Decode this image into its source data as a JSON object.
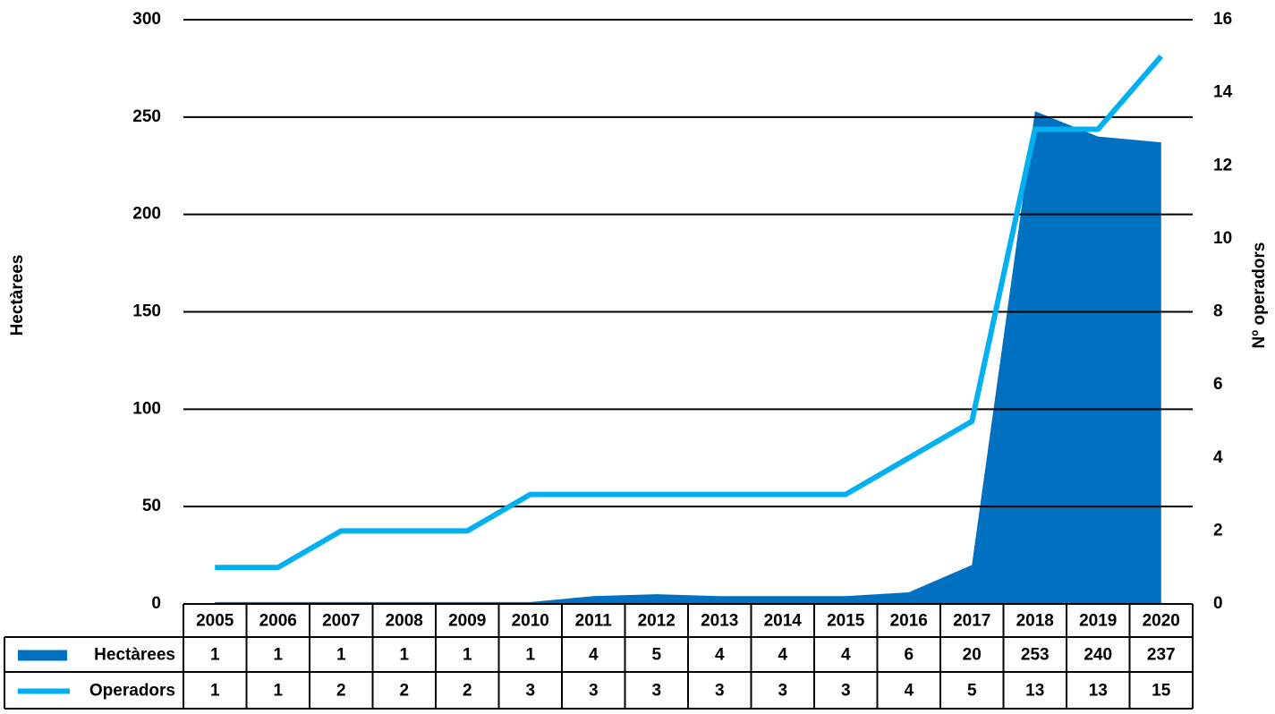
{
  "chart_data": {
    "type": "area-line",
    "y_label": "Hectàrees",
    "y2_label": "Nº operadors",
    "categories": [
      "2005",
      "2006",
      "2007",
      "2008",
      "2009",
      "2010",
      "2011",
      "2012",
      "2013",
      "2014",
      "2015",
      "2016",
      "2017",
      "2018",
      "2019",
      "2020"
    ],
    "series": [
      {
        "name": "Hectàrees",
        "type": "area",
        "color": "#0070c0",
        "values": [
          1,
          1,
          1,
          1,
          1,
          1,
          4,
          5,
          4,
          4,
          4,
          6,
          20,
          253,
          240,
          237
        ]
      },
      {
        "name": "Operadors",
        "type": "line",
        "axis": "y2",
        "color": "#00b0f0",
        "values": [
          1,
          1,
          2,
          2,
          2,
          3,
          3,
          3,
          3,
          3,
          3,
          4,
          5,
          13,
          13,
          15
        ]
      }
    ],
    "ylim": [
      0,
      300
    ],
    "yticks": [
      0,
      50,
      100,
      150,
      200,
      250,
      300
    ],
    "y2lim": [
      0,
      16
    ],
    "y2ticks": [
      0,
      2,
      4,
      6,
      8,
      10,
      12,
      14,
      16
    ],
    "grid": true,
    "data_table": true
  }
}
